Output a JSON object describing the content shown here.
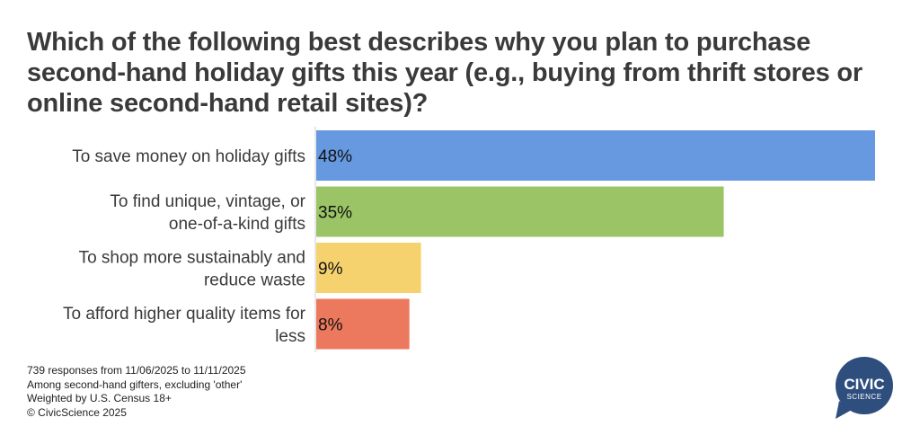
{
  "title": "Which of the following best describes why you plan to purchase second-hand holiday gifts this year (e.g., buying from thrift stores or online second-hand retail sites)?",
  "chart_data": {
    "type": "bar",
    "orientation": "horizontal",
    "title": "Which of the following best describes why you plan to purchase second-hand holiday gifts this year (e.g., buying from thrift stores or online second-hand retail sites)?",
    "categories": [
      [
        "To save money on holiday gifts"
      ],
      [
        "To find unique, vintage, or",
        "one-of-a-kind gifts"
      ],
      [
        "To shop more sustainably and",
        "reduce waste"
      ],
      [
        "To afford higher quality items for",
        "less"
      ]
    ],
    "values": [
      48,
      35,
      9,
      8
    ],
    "data_labels": [
      "48%",
      "35%",
      "9%",
      "8%"
    ],
    "colors": [
      "#6699e0",
      "#9bc466",
      "#f6d26e",
      "#ec785d"
    ],
    "xlim": [
      0,
      48
    ],
    "grid": false
  },
  "footnotes": [
    "739 responses from 11/06/2025 to 11/11/2025",
    "Among second-hand gifters, excluding 'other'",
    "Weighted by U.S. Census 18+",
    "© CivicScience 2025"
  ],
  "logo": {
    "line1": "CIVIC",
    "line2": "SCIENCE",
    "color": "#2e4e7e"
  }
}
